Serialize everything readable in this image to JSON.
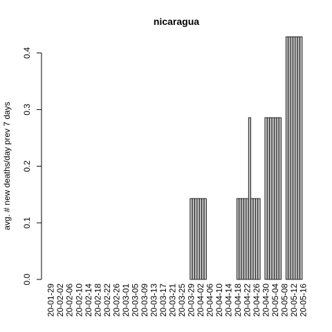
{
  "chart_data": {
    "type": "bar",
    "title": "nicaragua",
    "xlabel": "",
    "ylabel": "avg. # new deaths/day prev  7  days",
    "ylim": [
      0,
      0.43
    ],
    "y_ticks": [
      0.0,
      0.1,
      0.2,
      0.3,
      0.4
    ],
    "y_tick_labels": [
      "0.0",
      "0.1",
      "0.2",
      "0.3",
      "0.4"
    ],
    "start_date": "2020-01-29",
    "tick_labels": [
      "20-01-29",
      "20-02-02",
      "20-02-06",
      "20-02-10",
      "20-02-14",
      "20-02-18",
      "20-02-22",
      "20-02-26",
      "20-03-01",
      "20-03-05",
      "20-03-09",
      "20-03-13",
      "20-03-17",
      "20-03-21",
      "20-03-25",
      "20-03-29",
      "20-04-02",
      "20-04-06",
      "20-04-10",
      "20-04-14",
      "20-04-18",
      "20-04-22",
      "20-04-26",
      "20-04-30",
      "20-05-04",
      "20-05-08",
      "20-05-12",
      "20-05-16"
    ],
    "bar_fill": "#bebebe",
    "bar_stroke": "#000000",
    "values": [
      0,
      0,
      0,
      0,
      0,
      0,
      0,
      0,
      0,
      0,
      0,
      0,
      0,
      0,
      0,
      0,
      0,
      0,
      0,
      0,
      0,
      0,
      0,
      0,
      0,
      0,
      0,
      0,
      0,
      0,
      0,
      0,
      0,
      0,
      0,
      0,
      0,
      0,
      0,
      0,
      0,
      0,
      0,
      0,
      0,
      0,
      0,
      0,
      0,
      0,
      0,
      0,
      0,
      0,
      0,
      0,
      0,
      0,
      0,
      0,
      0.1429,
      0.1429,
      0.1429,
      0.1429,
      0.1429,
      0.1429,
      0.1429,
      0,
      0,
      0,
      0,
      0,
      0,
      0,
      0,
      0,
      0,
      0,
      0,
      0,
      0.1429,
      0.1429,
      0.1429,
      0.1429,
      0.1429,
      0.2857,
      0.1429,
      0.1429,
      0.1429,
      0.1429,
      0,
      0,
      0.2857,
      0.2857,
      0.2857,
      0.2857,
      0.2857,
      0.2857,
      0.2857,
      0,
      0,
      0.4286,
      0.4286,
      0.4286,
      0.4286,
      0.4286,
      0.4286,
      0.4286
    ]
  }
}
